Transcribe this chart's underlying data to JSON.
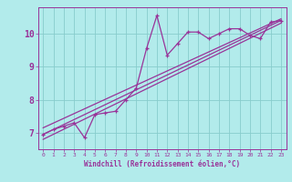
{
  "xlabel": "Windchill (Refroidissement éolien,°C)",
  "bg_color": "#b2ebeb",
  "line_color": "#993399",
  "grid_color": "#88cccc",
  "xlim": [
    -0.5,
    23.5
  ],
  "ylim": [
    6.5,
    10.8
  ],
  "xticks": [
    0,
    1,
    2,
    3,
    4,
    5,
    6,
    7,
    8,
    9,
    10,
    11,
    12,
    13,
    14,
    15,
    16,
    17,
    18,
    19,
    20,
    21,
    22,
    23
  ],
  "yticks": [
    7,
    8,
    9,
    10
  ],
  "series1_x": [
    0,
    1,
    2,
    3,
    4,
    5,
    6,
    7,
    8,
    9,
    10,
    11,
    12,
    13,
    14,
    15,
    16,
    17,
    18,
    19,
    20,
    21,
    22,
    23
  ],
  "series1_y": [
    6.95,
    7.1,
    7.2,
    7.3,
    6.85,
    7.55,
    7.6,
    7.65,
    8.0,
    8.35,
    9.55,
    10.55,
    9.35,
    9.7,
    10.05,
    10.05,
    9.85,
    10.0,
    10.15,
    10.15,
    9.95,
    9.85,
    10.35,
    10.4
  ],
  "line2_x": [
    0,
    23
  ],
  "line2_y": [
    6.95,
    10.4
  ],
  "line3_x": [
    0,
    23
  ],
  "line3_y": [
    7.15,
    10.45
  ],
  "line4_x": [
    0,
    23
  ],
  "line4_y": [
    6.8,
    10.32
  ]
}
